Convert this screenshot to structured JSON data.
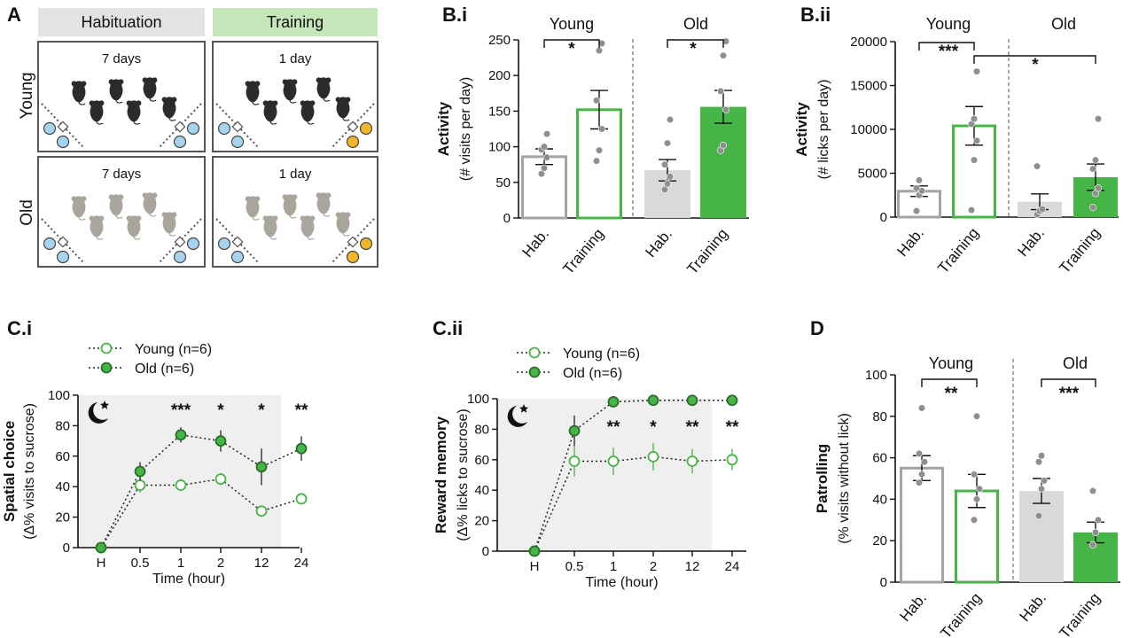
{
  "panel_A": {
    "letter": "A",
    "header_habituation": "Habituation",
    "header_training": "Training",
    "row_young": "Young",
    "row_old": "Old",
    "cells": [
      {
        "row": "young",
        "col": "hab",
        "duration": "7 days"
      },
      {
        "row": "young",
        "col": "train",
        "duration": "1 day"
      },
      {
        "row": "old",
        "col": "hab",
        "duration": "7 days"
      },
      {
        "row": "old",
        "col": "train",
        "duration": "1 day"
      }
    ],
    "colors": {
      "header_hab": "#e3e3e3",
      "header_train": "#c4e6b8",
      "young_mouse": "#2b2b2b",
      "old_mouse": "#a9a49c",
      "water_port": "#a6d4f0",
      "sucrose_port": "#f2b62a"
    }
  },
  "chart_data": [
    {
      "id": "B.i",
      "type": "bar",
      "title": "B.i",
      "ylabel": "Activity",
      "ylabel_sub": "(# visits per day)",
      "ylim": [
        0,
        250
      ],
      "yticks": [
        "0",
        "50",
        "100",
        "150",
        "200",
        "250"
      ],
      "groups": [
        "Young",
        "Old"
      ],
      "categories": [
        "Hab.",
        "Training",
        "Hab.",
        "Training"
      ],
      "values": [
        86,
        152,
        67,
        156
      ],
      "errors": [
        11,
        27,
        15,
        23
      ],
      "points": [
        [
          62,
          70,
          85,
          96,
          100,
          118
        ],
        [
          80,
          95,
          125,
          165,
          235,
          245
        ],
        [
          40,
          48,
          58,
          75,
          105,
          138
        ],
        [
          95,
          102,
          152,
          178,
          228,
          248
        ]
      ],
      "bar_styles": [
        "outline-gray",
        "outline-green",
        "fill-lightgray",
        "fill-green"
      ],
      "significance": [
        {
          "from": 0,
          "to": 1,
          "label": "*"
        },
        {
          "from": 2,
          "to": 3,
          "label": "*"
        }
      ]
    },
    {
      "id": "B.ii",
      "type": "bar",
      "title": "B.ii",
      "ylabel": "Activity",
      "ylabel_sub": "(# licks per day)",
      "ylim": [
        0,
        20000
      ],
      "yticks": [
        "0",
        "5000",
        "10000",
        "15000",
        "20000"
      ],
      "groups": [
        "Young",
        "Old"
      ],
      "categories": [
        "Hab.",
        "Training",
        "Hab.",
        "Training"
      ],
      "values": [
        2950,
        10400,
        1750,
        4550
      ],
      "errors": [
        600,
        2200,
        900,
        1500
      ],
      "points": [
        [
          700,
          2500,
          3000,
          3300,
          4200
        ],
        [
          800,
          6500,
          8700,
          10600,
          11200,
          16600
        ],
        [
          300,
          700,
          900,
          5800
        ],
        [
          1100,
          2700,
          3300,
          5500,
          6500,
          11200
        ]
      ],
      "bar_styles": [
        "outline-gray",
        "outline-green",
        "fill-lightgray",
        "fill-green"
      ],
      "significance": [
        {
          "from": 0,
          "to": 1,
          "label": "***"
        },
        {
          "from": 1,
          "to": 3,
          "label": "*"
        }
      ]
    },
    {
      "id": "C.i",
      "type": "line",
      "title": "C.i",
      "ylabel": "Spatial choice",
      "ylabel_sub": "(Δ% visits to sucrose)",
      "xlabel": "Time (hour)",
      "categories": [
        "H",
        "0.5",
        "1",
        "2",
        "12",
        "24"
      ],
      "ylim": [
        0,
        100
      ],
      "yticks": [
        "0",
        "20",
        "40",
        "60",
        "80",
        "100"
      ],
      "shaded_until_index": 4.5,
      "series": [
        {
          "name": "Young (n=6)",
          "marker": "open",
          "values": [
            0,
            41,
            41,
            45,
            24,
            32
          ],
          "errors": [
            0,
            5,
            4,
            4,
            2,
            2
          ]
        },
        {
          "name": "Old (n=6)",
          "marker": "filled",
          "values": [
            0,
            50,
            74,
            70,
            53,
            65
          ],
          "errors": [
            0,
            6,
            5,
            7,
            12,
            8
          ]
        }
      ],
      "significance": [
        "",
        "",
        "***",
        "*",
        "*",
        "**"
      ]
    },
    {
      "id": "C.ii",
      "type": "line",
      "title": "C.ii",
      "ylabel": "Reward memory",
      "ylabel_sub": "(Δ% licks to sucrose)",
      "xlabel": "Time (hour)",
      "categories": [
        "H",
        "0.5",
        "1",
        "2",
        "12",
        "24"
      ],
      "ylim": [
        0,
        100
      ],
      "yticks": [
        "0",
        "20",
        "40",
        "60",
        "80",
        "100"
      ],
      "shaded_until_index": 4.5,
      "series": [
        {
          "name": "Young (n=6)",
          "marker": "open",
          "values": [
            0,
            59,
            59,
            62,
            59,
            60
          ],
          "errors": [
            0,
            10,
            9,
            9,
            8,
            7
          ]
        },
        {
          "name": "Old (n=6)",
          "marker": "filled",
          "values": [
            0,
            79,
            98,
            99,
            99,
            99
          ],
          "errors": [
            0,
            10,
            2,
            1,
            1,
            1
          ]
        }
      ],
      "significance": [
        "",
        "",
        "**",
        "*",
        "**",
        "**"
      ]
    },
    {
      "id": "D",
      "type": "bar",
      "title": "D",
      "ylabel": "Patrolling",
      "ylabel_sub": "(% visits without lick)",
      "ylim": [
        0,
        100
      ],
      "yticks": [
        "0",
        "20",
        "40",
        "60",
        "80",
        "100"
      ],
      "groups": [
        "Young",
        "Old"
      ],
      "categories": [
        "Hab.",
        "Training",
        "Hab.",
        "Training"
      ],
      "values": [
        55,
        44,
        44,
        24
      ],
      "errors": [
        6,
        8,
        6,
        5
      ],
      "points": [
        [
          48,
          52,
          58,
          62,
          84
        ],
        [
          30,
          40,
          45,
          52,
          80
        ],
        [
          32,
          45,
          49,
          58,
          61
        ],
        [
          18,
          24,
          30,
          44
        ]
      ],
      "bar_styles": [
        "outline-gray",
        "outline-green",
        "fill-lightgray",
        "fill-green"
      ],
      "significance": [
        {
          "from": 0,
          "to": 1,
          "label": "**"
        },
        {
          "from": 2,
          "to": 3,
          "label": "***"
        }
      ]
    }
  ],
  "colors": {
    "green": "#45b645",
    "outline_gray": "#a3a3a3",
    "light_gray_fill": "#d9d9d9",
    "point": "#8f8f8f",
    "shade": "#efefef"
  }
}
